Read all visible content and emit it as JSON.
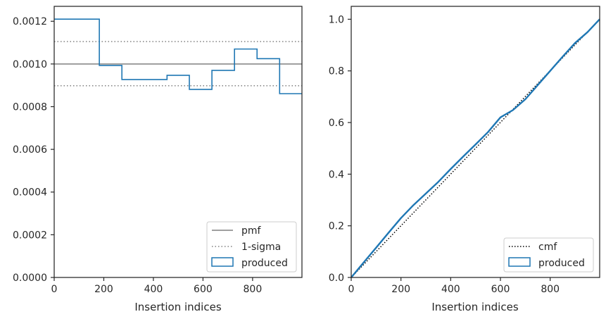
{
  "colors": {
    "produced": "#1f77b4",
    "pmf": "#808080",
    "sigma": "#808080",
    "cmf": "#000000",
    "axes": "#262626"
  },
  "chart_data": [
    {
      "type": "step",
      "title": "",
      "xlabel": "Insertion indices",
      "ylabel": "",
      "xlim": [
        0,
        999
      ],
      "ylim": [
        0,
        0.00127
      ],
      "xticks": [
        0,
        200,
        400,
        600,
        800
      ],
      "xtick_labels": [
        "0",
        "200",
        "400",
        "600",
        "800"
      ],
      "yticks": [
        0,
        0.0002,
        0.0004,
        0.0006,
        0.0008,
        0.001,
        0.0012
      ],
      "ytick_labels": [
        "0.0000",
        "0.0002",
        "0.0004",
        "0.0006",
        "0.0008",
        "0.0010",
        "0.0012"
      ],
      "grid": false,
      "legend_position": "lower right",
      "legend": [
        "pmf",
        "1-sigma",
        "produced"
      ],
      "pmf": 0.001,
      "sigma_band": [
        0.000898,
        0.001105
      ],
      "series": [
        {
          "name": "produced",
          "bin_edges": [
            0,
            182,
            273,
            455,
            545,
            636,
            727,
            818,
            909,
            999
          ],
          "values": [
            0.00121,
            0.000993,
            0.000927,
            0.000947,
            0.000881,
            0.00097,
            0.00107,
            0.001025,
            0.000861
          ]
        }
      ]
    },
    {
      "type": "line",
      "title": "",
      "xlabel": "Insertion indices",
      "ylabel": "",
      "xlim": [
        0,
        999
      ],
      "ylim": [
        0,
        1.05
      ],
      "xticks": [
        0,
        200,
        400,
        600,
        800
      ],
      "xtick_labels": [
        "0",
        "200",
        "400",
        "600",
        "800"
      ],
      "yticks": [
        0,
        0.2,
        0.4,
        0.6,
        0.8,
        1.0
      ],
      "ytick_labels": [
        "0.0",
        "0.2",
        "0.4",
        "0.6",
        "0.8",
        "1.0"
      ],
      "grid": false,
      "legend_position": "lower right",
      "legend": [
        "cmf",
        "produced"
      ],
      "series": [
        {
          "name": "cmf",
          "x": [
            0,
            999
          ],
          "y": [
            0,
            1.0
          ]
        },
        {
          "name": "produced",
          "x": [
            0,
            50,
            100,
            150,
            200,
            250,
            300,
            350,
            400,
            450,
            500,
            550,
            600,
            650,
            700,
            750,
            800,
            850,
            900,
            950,
            999
          ],
          "y": [
            0,
            0.058,
            0.115,
            0.173,
            0.23,
            0.28,
            0.325,
            0.37,
            0.42,
            0.468,
            0.515,
            0.563,
            0.62,
            0.648,
            0.69,
            0.745,
            0.8,
            0.855,
            0.908,
            0.95,
            1.0
          ]
        }
      ]
    }
  ]
}
